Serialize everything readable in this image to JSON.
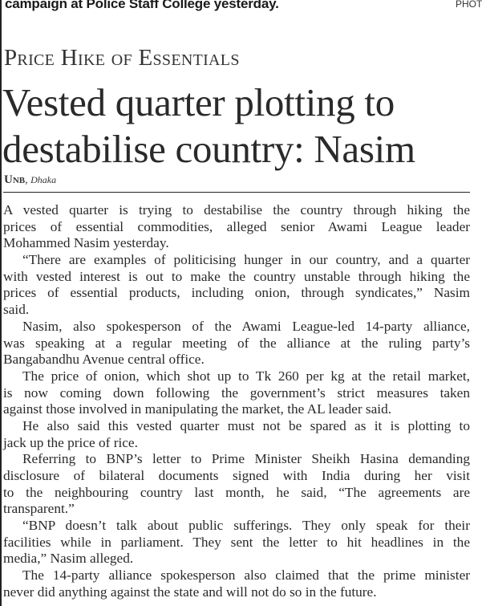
{
  "caption": "campaign at Police Staff College yesterday.",
  "photo_credit": "PHOT",
  "kicker": "Price Hike of Essentials",
  "headline": [
    "Vested quarter plotting to",
    "destabilise country: Nasim"
  ],
  "byline": {
    "agency": "Unb",
    "place": "Dhaka"
  },
  "body_lines": [
    "A vested quarter is trying to destabilise the country through hiking the",
    "prices of essential commodities, alleged senior Awami League leader",
    "Mohammed Nasim yesterday.",
    "“There are examples of politicising hunger in our country, and a quarter",
    "with vested interest is out to make the country unstable through hiking the",
    "prices of essential products, including onion, through syndicates,” Nasim",
    "said.",
    "Nasim, also spokesperson of the Awami League-led 14-party alliance,",
    "was speaking at a regular meeting of the alliance at the ruling party’s",
    "Bangabandhu Avenue central office.",
    "The price of onion, which shot up to Tk 260 per kg at the retail market,",
    "is now coming down following the government’s strict measures taken",
    "against those involved in manipulating the market, the AL leader said.",
    "He also said this vested quarter must not be spared as it is plotting to",
    "jack up the price of rice.",
    "Referring to BNP’s letter to Prime Minister Sheikh Hasina demanding",
    "disclosure of bilateral documents signed with India during her visit",
    "to the neighbouring country last month, he said, “The agreements are",
    "transparent.”",
    "“BNP doesn’t talk about public sufferings. They only speak for their",
    "facilities while in parliament. They sent the letter to hit headlines in the",
    "media,” Nasim alleged.",
    "The 14-party alliance spokesperson also claimed that the prime minister",
    "never did anything against the state and will not do so in the future."
  ]
}
